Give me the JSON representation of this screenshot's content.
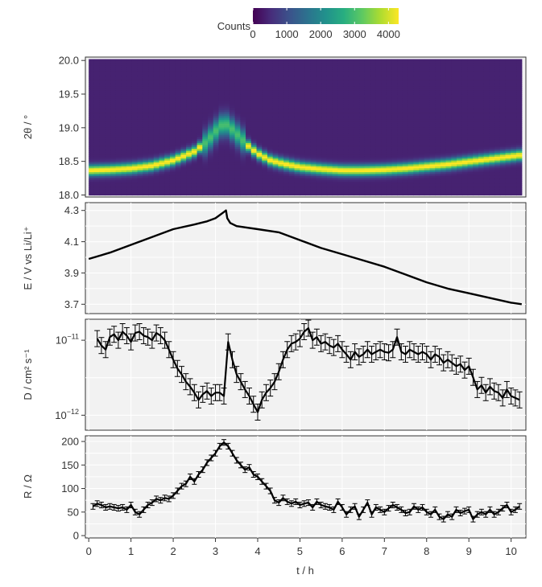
{
  "colorbar": {
    "title": "Counts",
    "ticks": [
      0,
      1000,
      2000,
      3000,
      4000
    ],
    "tick_labels": [
      "0",
      "1000",
      "2000",
      "3000",
      "4000"
    ],
    "range": [
      0,
      4300
    ],
    "colormap": "viridis"
  },
  "x_axis": {
    "label": "t / h",
    "ticks": [
      0,
      1,
      2,
      3,
      4,
      5,
      6,
      7,
      8,
      9,
      10
    ],
    "tick_labels": [
      "0",
      "1",
      "2",
      "3",
      "4",
      "5",
      "6",
      "7",
      "8",
      "9",
      "10"
    ],
    "range": [
      -0.08,
      10.35
    ]
  },
  "colors": {
    "panel_bg": "#f2f2f2",
    "grid": "#ffffff",
    "line": "#000000",
    "text": "#333333",
    "frame": "#333333"
  },
  "chart_data": [
    {
      "type": "heatmap",
      "ylabel": "2θ / °",
      "y_ticks": [
        18.0,
        18.5,
        19.0,
        19.5,
        20.0
      ],
      "y_tick_labels": [
        "18.0",
        "18.5",
        "19.0",
        "19.5",
        "20.0"
      ],
      "ylim": [
        17.97,
        20.05
      ],
      "x_extent": [
        0.0,
        10.25
      ],
      "background_counts": 400,
      "ridge_peak_counts": 4000,
      "ridge_center": {
        "t": [
          0.0,
          0.5,
          1.0,
          1.5,
          2.0,
          2.5,
          2.8,
          3.0,
          3.2,
          3.4,
          3.6,
          3.8,
          4.0,
          4.3,
          4.6,
          5.0,
          5.5,
          6.0,
          6.5,
          7.0,
          7.5,
          8.0,
          8.5,
          9.0,
          9.5,
          10.0,
          10.25
        ],
        "two_theta": [
          18.37,
          18.38,
          18.4,
          18.44,
          18.52,
          18.65,
          18.8,
          18.95,
          19.08,
          18.98,
          18.85,
          18.72,
          18.62,
          18.52,
          18.47,
          18.42,
          18.39,
          18.37,
          18.37,
          18.38,
          18.4,
          18.43,
          18.46,
          18.5,
          18.54,
          18.58,
          18.6
        ]
      }
    },
    {
      "type": "line",
      "ylabel": "E / V vs Li/Li⁺",
      "y_ticks": [
        3.7,
        3.9,
        4.1,
        4.3
      ],
      "y_tick_labels": [
        "3.7",
        "3.9",
        "4.1",
        "4.3"
      ],
      "ylim": [
        3.64,
        4.35
      ],
      "x": [
        0.0,
        0.5,
        1.0,
        1.5,
        2.0,
        2.5,
        2.8,
        3.0,
        3.1,
        3.2,
        3.25,
        3.28,
        3.35,
        3.5,
        4.0,
        4.5,
        5.0,
        5.5,
        6.0,
        6.5,
        7.0,
        7.5,
        8.0,
        8.5,
        9.0,
        9.5,
        10.0,
        10.25
      ],
      "y": [
        3.99,
        4.03,
        4.08,
        4.13,
        4.18,
        4.21,
        4.23,
        4.25,
        4.27,
        4.29,
        4.3,
        4.25,
        4.22,
        4.2,
        4.18,
        4.16,
        4.11,
        4.06,
        4.02,
        3.98,
        3.94,
        3.89,
        3.84,
        3.8,
        3.77,
        3.74,
        3.71,
        3.7
      ]
    },
    {
      "type": "line",
      "ylabel": "D / cm² s⁻¹",
      "y_scale": "log",
      "y_ticks": [
        1e-11,
        1e-12
      ],
      "y_tick_labels": [
        "10⁻¹¹",
        "10⁻¹²"
      ],
      "ylim_log10": [
        -12.2,
        -10.72
      ],
      "error_bars": true,
      "relative_error": 0.28,
      "x": [
        0.2,
        0.3,
        0.4,
        0.5,
        0.6,
        0.7,
        0.8,
        0.9,
        1.0,
        1.1,
        1.2,
        1.3,
        1.4,
        1.5,
        1.6,
        1.7,
        1.8,
        1.9,
        2.0,
        2.1,
        2.2,
        2.3,
        2.4,
        2.5,
        2.6,
        2.7,
        2.8,
        2.9,
        3.0,
        3.1,
        3.2,
        3.3,
        3.4,
        3.5,
        3.6,
        3.7,
        3.8,
        3.9,
        4.0,
        4.1,
        4.2,
        4.3,
        4.4,
        4.5,
        4.6,
        4.7,
        4.8,
        4.9,
        5.0,
        5.1,
        5.2,
        5.3,
        5.4,
        5.5,
        5.6,
        5.7,
        5.8,
        5.9,
        6.0,
        6.1,
        6.2,
        6.3,
        6.4,
        6.5,
        6.6,
        6.7,
        6.8,
        6.9,
        7.0,
        7.1,
        7.2,
        7.3,
        7.4,
        7.5,
        7.6,
        7.7,
        7.8,
        7.9,
        8.0,
        8.1,
        8.2,
        8.3,
        8.4,
        8.5,
        8.6,
        8.7,
        8.8,
        8.9,
        9.0,
        9.1,
        9.2,
        9.3,
        9.4,
        9.5,
        9.6,
        9.7,
        9.8,
        9.9,
        10.0,
        10.1,
        10.2
      ],
      "y": [
        1.05e-11,
        8.5e-12,
        7.5e-12,
        1.1e-11,
        1.2e-11,
        1e-11,
        1.3e-11,
        1.15e-11,
        9.5e-12,
        1.25e-11,
        1.3e-11,
        1.15e-11,
        1.1e-11,
        1e-11,
        1.25e-11,
        1.15e-11,
        1e-11,
        7.5e-12,
        5.5e-12,
        4.2e-12,
        3.5e-12,
        2.8e-12,
        2.4e-12,
        2e-12,
        1.6e-12,
        1.9e-12,
        2.1e-12,
        1.8e-12,
        2e-12,
        2e-12,
        1.8e-12,
        9.5e-12,
        5.5e-12,
        3.5e-12,
        2.8e-12,
        2.2e-12,
        1.8e-12,
        1.4e-12,
        1.1e-12,
        1.6e-12,
        2e-12,
        2.3e-12,
        2.8e-12,
        3.8e-12,
        5.5e-12,
        7.5e-12,
        9e-12,
        9.5e-12,
        1.05e-11,
        1.3e-11,
        1.45e-11,
        1e-11,
        1.1e-11,
        9e-12,
        9.5e-12,
        8.5e-12,
        8e-12,
        9e-12,
        7.5e-12,
        6.5e-12,
        5.5e-12,
        7e-12,
        6e-12,
        6.5e-12,
        7.5e-12,
        6.5e-12,
        7e-12,
        7.5e-12,
        7e-12,
        6.8e-12,
        7.5e-12,
        1.1e-11,
        7e-12,
        6.5e-12,
        7.5e-12,
        7e-12,
        6.5e-12,
        7e-12,
        6.5e-12,
        5.5e-12,
        6.5e-12,
        6e-12,
        5e-12,
        5.5e-12,
        5e-12,
        4.5e-12,
        4.8e-12,
        4e-12,
        4.5e-12,
        3.2e-12,
        2.2e-12,
        2.5e-12,
        2e-12,
        2.4e-12,
        2.1e-12,
        2e-12,
        1.7e-12,
        2.2e-12,
        1.8e-12,
        1.7e-12,
        1.6e-12
      ]
    },
    {
      "type": "line",
      "ylabel": "R / Ω",
      "y_ticks": [
        0,
        50,
        100,
        150,
        200
      ],
      "y_tick_labels": [
        "0",
        "50",
        "100",
        "150",
        "200"
      ],
      "ylim": [
        -5,
        212
      ],
      "error_bars": true,
      "error_abs": 6,
      "x": [
        0.1,
        0.2,
        0.3,
        0.4,
        0.5,
        0.6,
        0.7,
        0.8,
        0.9,
        1.0,
        1.1,
        1.2,
        1.3,
        1.4,
        1.5,
        1.6,
        1.7,
        1.8,
        1.9,
        2.0,
        2.1,
        2.2,
        2.3,
        2.4,
        2.5,
        2.6,
        2.7,
        2.8,
        2.9,
        3.0,
        3.1,
        3.2,
        3.3,
        3.4,
        3.5,
        3.6,
        3.7,
        3.8,
        3.9,
        4.0,
        4.1,
        4.2,
        4.3,
        4.4,
        4.5,
        4.6,
        4.7,
        4.8,
        4.9,
        5.0,
        5.1,
        5.2,
        5.3,
        5.4,
        5.5,
        5.6,
        5.7,
        5.8,
        5.9,
        6.0,
        6.1,
        6.2,
        6.3,
        6.4,
        6.5,
        6.6,
        6.7,
        6.8,
        6.9,
        7.0,
        7.1,
        7.2,
        7.3,
        7.4,
        7.5,
        7.6,
        7.7,
        7.8,
        7.9,
        8.0,
        8.1,
        8.2,
        8.3,
        8.4,
        8.5,
        8.6,
        8.7,
        8.8,
        8.9,
        9.0,
        9.1,
        9.2,
        9.3,
        9.4,
        9.5,
        9.6,
        9.7,
        9.8,
        9.9,
        10.0,
        10.1,
        10.2
      ],
      "y": [
        62,
        68,
        65,
        60,
        62,
        60,
        58,
        60,
        55,
        65,
        50,
        45,
        55,
        65,
        70,
        78,
        75,
        80,
        78,
        85,
        95,
        105,
        110,
        125,
        115,
        130,
        140,
        155,
        165,
        175,
        190,
        198,
        190,
        175,
        160,
        150,
        140,
        145,
        130,
        125,
        115,
        105,
        95,
        75,
        70,
        80,
        72,
        68,
        72,
        65,
        68,
        70,
        60,
        72,
        65,
        62,
        60,
        55,
        72,
        60,
        45,
        55,
        62,
        40,
        55,
        70,
        45,
        60,
        55,
        50,
        58,
        65,
        60,
        55,
        48,
        50,
        62,
        55,
        60,
        50,
        45,
        55,
        40,
        35,
        45,
        40,
        55,
        48,
        52,
        55,
        35,
        45,
        50,
        45,
        55,
        45,
        50,
        58,
        65,
        50,
        55,
        62
      ]
    }
  ]
}
